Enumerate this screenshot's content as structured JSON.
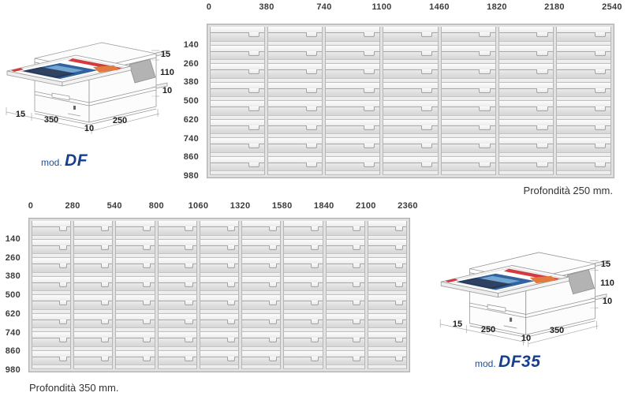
{
  "page": {
    "background": "#ffffff"
  },
  "figures": {
    "df": {
      "model_prefix": "mod.",
      "model_name": "DF",
      "dims_right": [
        "15",
        "110",
        "10"
      ],
      "dims_bottom": [
        "15",
        "350",
        "10",
        "250"
      ]
    },
    "df35": {
      "model_prefix": "mod.",
      "model_name": "DF35",
      "dims_right": [
        "15",
        "110",
        "10"
      ],
      "dims_bottom": [
        "15",
        "250",
        "10",
        "350"
      ]
    }
  },
  "grids": [
    {
      "name": "depth-250-drawer-grid",
      "caption": "Profondità 250 mm.",
      "columns": 7,
      "rows": 8,
      "column_labels": [
        "0",
        "380",
        "740",
        "1100",
        "1460",
        "1820",
        "2180",
        "2540"
      ],
      "row_labels": [
        "140",
        "260",
        "380",
        "500",
        "620",
        "740",
        "860",
        "980"
      ]
    },
    {
      "name": "depth-350-drawer-grid",
      "caption": "Profondità 350 mm.",
      "columns": 9,
      "rows": 8,
      "column_labels": [
        "0",
        "280",
        "540",
        "800",
        "1060",
        "1320",
        "1580",
        "1840",
        "2100",
        "2360"
      ],
      "row_labels": [
        "140",
        "260",
        "380",
        "500",
        "620",
        "740",
        "860",
        "980"
      ]
    }
  ],
  "colors": {
    "accent": "#1c4f9e",
    "model_name_color": "#163f8f",
    "axis_text": "#3b3b3b",
    "caption_text": "#333333",
    "dim_text": "#1f1f1f",
    "poster_red": "#d23c3e",
    "poster_blue": "#31639f",
    "poster_lightblue": "#7fb2d9",
    "poster_navy": "#23304d",
    "poster_orange": "#e07a3f",
    "flap_gray": "#b3b3b3"
  }
}
